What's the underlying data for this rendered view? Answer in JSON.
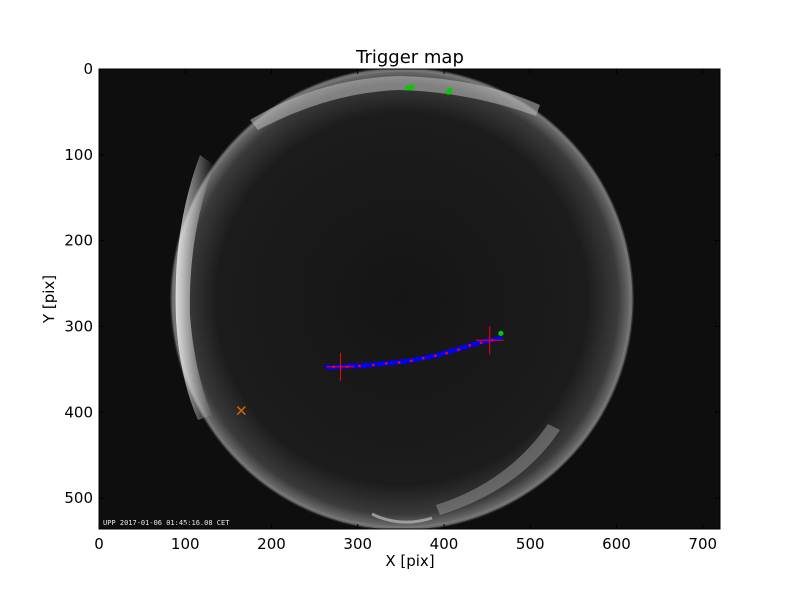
{
  "chart_data": {
    "type": "scatter",
    "title": "Trigger map",
    "xlabel": "X [pix]",
    "ylabel": "Y [pix]",
    "xlim": [
      0,
      720
    ],
    "ylim": [
      536,
      0
    ],
    "xticks": [
      0,
      100,
      200,
      300,
      400,
      500,
      600,
      700
    ],
    "yticks": [
      0,
      100,
      200,
      300,
      400,
      500
    ],
    "grid": false,
    "background_image": "all-sky fisheye camera frame",
    "image_stamp": "UPP 2017-01-06 01:45:16.08 CET",
    "series": [
      {
        "color": "#0000ff",
        "marker": "circle",
        "points": [
          [
            265,
            347
          ],
          [
            270,
            348
          ],
          [
            275,
            347
          ],
          [
            280,
            347
          ],
          [
            285,
            347
          ],
          [
            290,
            346
          ],
          [
            295,
            346
          ],
          [
            300,
            346
          ],
          [
            305,
            346
          ],
          [
            310,
            345
          ],
          [
            315,
            345
          ],
          [
            320,
            344
          ],
          [
            325,
            344
          ],
          [
            330,
            343
          ],
          [
            335,
            343
          ],
          [
            340,
            342
          ],
          [
            345,
            342
          ],
          [
            350,
            341
          ],
          [
            355,
            341
          ],
          [
            360,
            340
          ],
          [
            365,
            339
          ],
          [
            370,
            338
          ],
          [
            375,
            337
          ],
          [
            380,
            336
          ],
          [
            385,
            335
          ],
          [
            390,
            334
          ],
          [
            395,
            333
          ],
          [
            400,
            331
          ],
          [
            405,
            330
          ],
          [
            410,
            328
          ],
          [
            415,
            327
          ],
          [
            420,
            325
          ],
          [
            425,
            324
          ],
          [
            430,
            322
          ],
          [
            435,
            321
          ],
          [
            440,
            319
          ],
          [
            445,
            318
          ],
          [
            450,
            317
          ],
          [
            455,
            316
          ],
          [
            460,
            315
          ],
          [
            465,
            314
          ]
        ]
      },
      {
        "color": "#ff0000",
        "marker": "dot",
        "points": [
          [
            272,
            347
          ],
          [
            288,
            347
          ],
          [
            302,
            346
          ],
          [
            318,
            345
          ],
          [
            333,
            343
          ],
          [
            348,
            342
          ],
          [
            362,
            340
          ],
          [
            376,
            337
          ],
          [
            390,
            334
          ],
          [
            403,
            331
          ],
          [
            417,
            327
          ],
          [
            430,
            322
          ],
          [
            443,
            319
          ],
          [
            456,
            316
          ]
        ]
      },
      {
        "color": "#ff0000",
        "marker": "cross",
        "points": [
          [
            280,
            347
          ],
          [
            453,
            316
          ]
        ]
      },
      {
        "color": "#00cc00",
        "marker": "circle",
        "points": [
          [
            358,
            22
          ],
          [
            363,
            21
          ],
          [
            405,
            27
          ],
          [
            407,
            25
          ],
          [
            466,
            308
          ]
        ]
      },
      {
        "color": "#cc6600",
        "marker": "x",
        "points": [
          [
            165,
            398
          ]
        ]
      }
    ]
  }
}
